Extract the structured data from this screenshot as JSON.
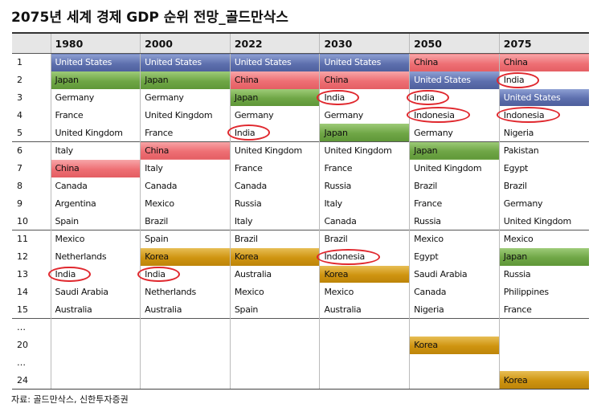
{
  "title": "2075년 세계 경제 GDP 순위 전망_골드만삭스",
  "source": "자료: 골드만삭스, 신한투자증권",
  "chart_data": {
    "type": "table",
    "title": "2075년 세계 경제 GDP 순위 전망_골드만삭스",
    "columns": [
      "",
      "1980",
      "2000",
      "2022",
      "2030",
      "2050",
      "2075"
    ],
    "rows": [
      {
        "rank": "1",
        "cells": [
          "United States",
          "United States",
          "United States",
          "United States",
          "China",
          "China"
        ]
      },
      {
        "rank": "2",
        "cells": [
          "Japan",
          "Japan",
          "China",
          "China",
          "United States",
          "India"
        ]
      },
      {
        "rank": "3",
        "cells": [
          "Germany",
          "Germany",
          "Japan",
          "India",
          "India",
          "United States"
        ]
      },
      {
        "rank": "4",
        "cells": [
          "France",
          "United Kingdom",
          "Germany",
          "Germany",
          "Indonesia",
          "Indonesia"
        ]
      },
      {
        "rank": "5",
        "cells": [
          "United Kingdom",
          "France",
          "India",
          "Japan",
          "Germany",
          "Nigeria"
        ]
      },
      {
        "rank": "6",
        "cells": [
          "Italy",
          "China",
          "United Kingdom",
          "United Kingdom",
          "Japan",
          "Pakistan"
        ]
      },
      {
        "rank": "7",
        "cells": [
          "China",
          "Italy",
          "France",
          "France",
          "United Kingdom",
          "Egypt"
        ]
      },
      {
        "rank": "8",
        "cells": [
          "Canada",
          "Canada",
          "Canada",
          "Russia",
          "Brazil",
          "Brazil"
        ]
      },
      {
        "rank": "9",
        "cells": [
          "Argentina",
          "Mexico",
          "Russia",
          "Italy",
          "France",
          "Germany"
        ]
      },
      {
        "rank": "10",
        "cells": [
          "Spain",
          "Brazil",
          "Italy",
          "Canada",
          "Russia",
          "United Kingdom"
        ]
      },
      {
        "rank": "11",
        "cells": [
          "Mexico",
          "Spain",
          "Brazil",
          "Brazil",
          "Mexico",
          "Mexico"
        ]
      },
      {
        "rank": "12",
        "cells": [
          "Netherlands",
          "Korea",
          "Korea",
          "Indonesia",
          "Egypt",
          "Japan"
        ]
      },
      {
        "rank": "13",
        "cells": [
          "India",
          "India",
          "Australia",
          "Korea",
          "Saudi Arabia",
          "Russia"
        ]
      },
      {
        "rank": "14",
        "cells": [
          "Saudi Arabia",
          "Netherlands",
          "Mexico",
          "Mexico",
          "Canada",
          "Philippines"
        ]
      },
      {
        "rank": "15",
        "cells": [
          "Australia",
          "Australia",
          "Spain",
          "Australia",
          "Nigeria",
          "France"
        ]
      },
      {
        "rank": "…",
        "cells": [
          "",
          "",
          "",
          "",
          "",
          ""
        ]
      },
      {
        "rank": "20",
        "cells": [
          "",
          "",
          "",
          "",
          "Korea",
          ""
        ]
      },
      {
        "rank": "…",
        "cells": [
          "",
          "",
          "",
          "",
          "",
          ""
        ]
      },
      {
        "rank": "24",
        "cells": [
          "",
          "",
          "",
          "",
          "",
          "Korea"
        ]
      }
    ],
    "highlight_colors": {
      "United States": "#5d6fae",
      "China": "#ee6f74",
      "Japan": "#6fa646",
      "Korea": "#cf9410"
    },
    "circled_color": "#e0282e",
    "circled_countries": [
      "India",
      "Indonesia"
    ]
  }
}
